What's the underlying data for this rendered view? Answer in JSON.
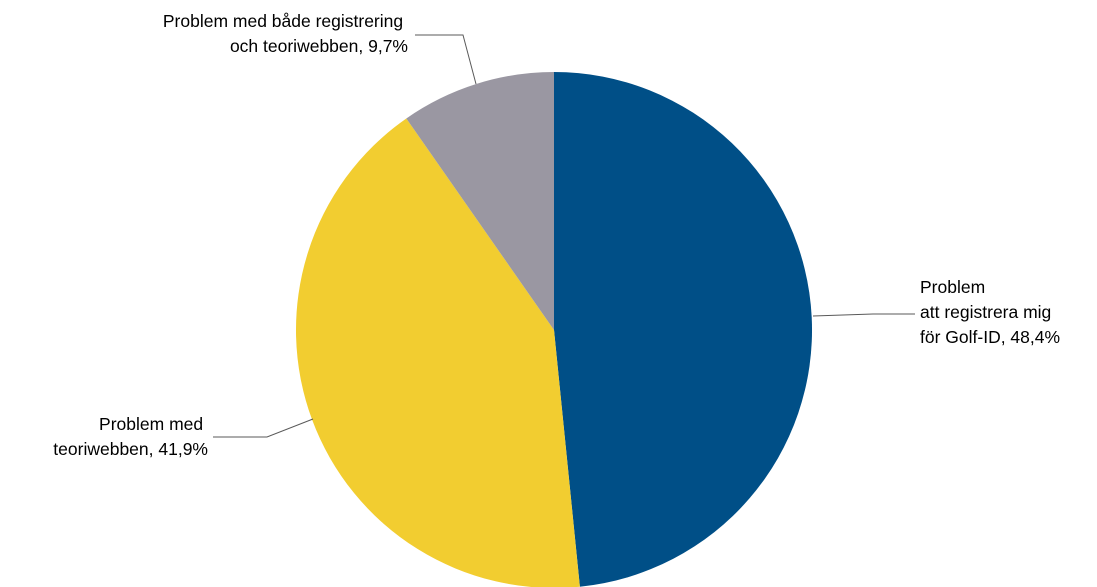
{
  "chart_data": {
    "type": "pie",
    "title": "",
    "slices": [
      {
        "label_lines": [
          "Problem",
          "att registrera mig",
          "för Golf-ID, 48,4%"
        ],
        "value": 48.4,
        "color": "#004f87"
      },
      {
        "label_lines": [
          "Problem med",
          "teoriwebben, 41,9%"
        ],
        "value": 41.9,
        "color": "#f2cd30"
      },
      {
        "label_lines": [
          "Problem med både registrering",
          "och teoriwebben,  9,7%"
        ],
        "value": 9.7,
        "color": "#9a97a2"
      }
    ],
    "start_angle_deg": 0,
    "direction": "clockwise",
    "legend": "none"
  }
}
